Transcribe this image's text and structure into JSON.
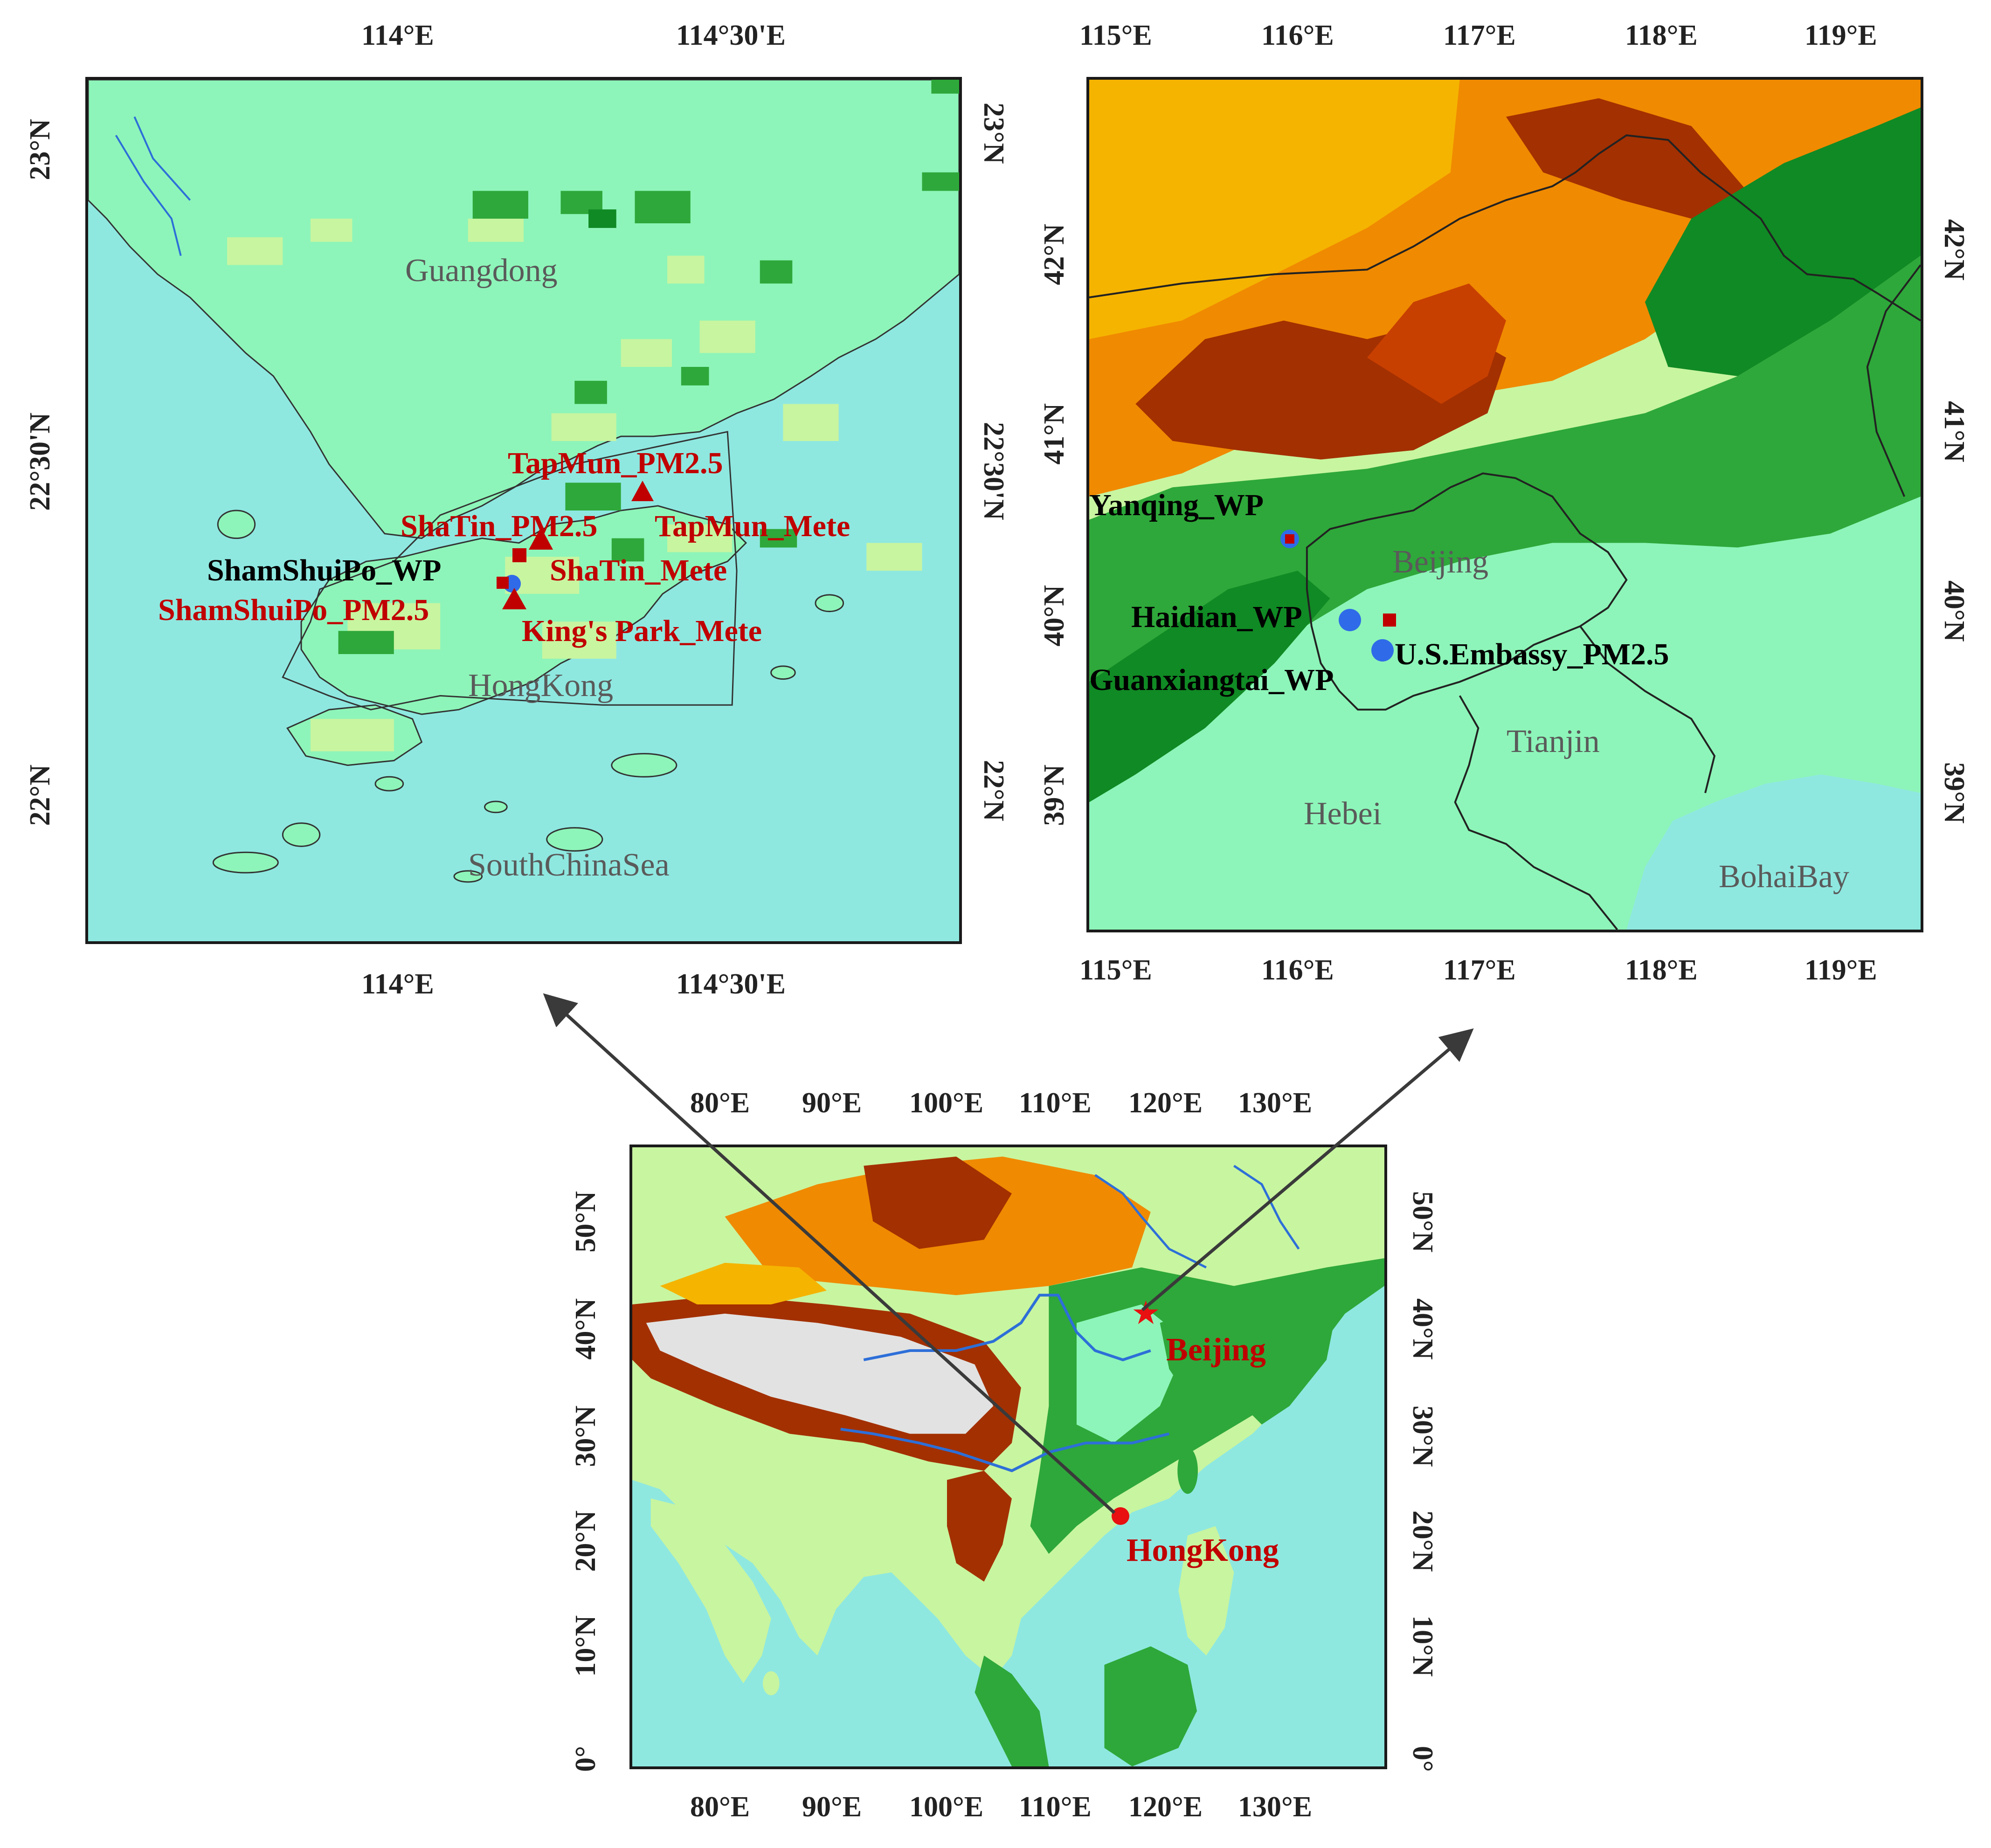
{
  "hk_map": {
    "top_ticks": [
      "114°E",
      "114°30'E"
    ],
    "bottom_ticks": [
      "114°E",
      "114°30'E"
    ],
    "left_ticks": [
      "23°N",
      "22°30'N",
      "22°N"
    ],
    "right_ticks": [
      "23°N",
      "22°30'N",
      "22°N"
    ],
    "regions": {
      "guangdong": "Guangdong",
      "hongkong": "HongKong",
      "sea": "SouthChinaSea"
    },
    "stations": {
      "tapmun_pm": "TapMun_PM2.5",
      "shatin_pm": "ShaTin_PM2.5",
      "tapmun_mete": "TapMun_Mete",
      "shamshuipo_wp": "ShamShuiPo_WP",
      "shatin_mete": "ShaTin_Mete",
      "shamshuipo_pm": "ShamShuiPo_PM2.5",
      "kingspark_mete": "King's Park_Mete"
    }
  },
  "bj_map": {
    "top_ticks": [
      "115°E",
      "116°E",
      "117°E",
      "118°E",
      "119°E"
    ],
    "bottom_ticks": [
      "115°E",
      "116°E",
      "117°E",
      "118°E",
      "119°E"
    ],
    "left_ticks": [
      "42°N",
      "41°N",
      "40°N",
      "39°N"
    ],
    "right_ticks": [
      "42°N",
      "41°N",
      "40°N",
      "39°N"
    ],
    "regions": {
      "beijing": "Beijing",
      "tianjin": "Tianjin",
      "hebei": "Hebei",
      "bohai": "BohaiBay"
    },
    "stations": {
      "yanqing_wp": "Yanqing_WP",
      "haidian_wp": "Haidian_WP",
      "us_embassy_pm": "U.S.Embassy_PM2.5",
      "guanxiangtai_wp": "Guanxiangtai_WP"
    }
  },
  "china_map": {
    "top_ticks": [
      "80°E",
      "90°E",
      "100°E",
      "110°E",
      "120°E",
      "130°E"
    ],
    "bottom_ticks": [
      "80°E",
      "90°E",
      "100°E",
      "110°E",
      "120°E",
      "130°E"
    ],
    "left_ticks": [
      "50°N",
      "40°N",
      "30°N",
      "20°N",
      "10°N",
      "0°"
    ],
    "right_ticks": [
      "50°N",
      "40°N",
      "30°N",
      "20°N",
      "10°N",
      "0°"
    ],
    "cities": {
      "beijing": "Beijing",
      "hongkong": "HongKong"
    }
  },
  "colors": {
    "sea": "#8ee8e0",
    "lowland": "#8df5b9",
    "plain": "#c8f5a0",
    "forest": "#2ea83a",
    "dark_forest": "#108a24",
    "highland": "#f08a00",
    "mountain": "#a33000",
    "snow": "#e2e2e2",
    "river": "#2d6fd8",
    "station_red": "#c00000",
    "station_blue": "#2f6be8"
  }
}
